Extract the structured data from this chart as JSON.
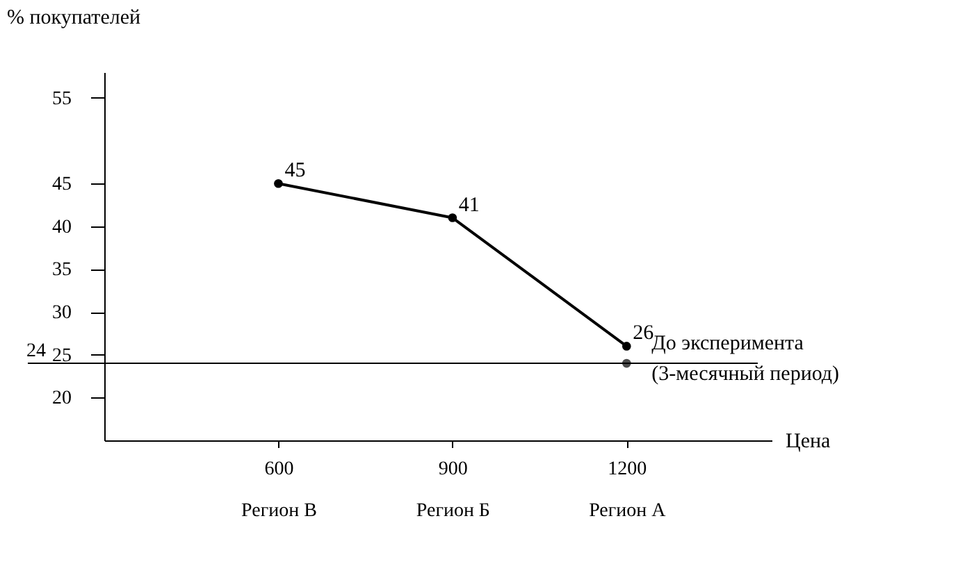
{
  "chart_data": {
    "type": "line",
    "xlabel": "Цена",
    "ylabel": "% покупателей",
    "x": [
      600,
      900,
      1200
    ],
    "series": [
      {
        "color": "#000000",
        "values": [
          45,
          41,
          26
        ],
        "value_labels": [
          "45",
          "41",
          "26"
        ],
        "marker": "circle"
      },
      {
        "type": "scatter",
        "color": "#000000",
        "x": [
          1200
        ],
        "values": [
          24
        ],
        "marker": "circle"
      }
    ],
    "xlim": [
      300,
      1450
    ],
    "ylim": [
      15,
      58
    ],
    "xticks": [
      {
        "value": 600,
        "label": "600\nРегион В"
      },
      {
        "value": 900,
        "label": "900\nРегион Б"
      },
      {
        "value": 1200,
        "label": "1200\nРегион А"
      }
    ],
    "yticks": [
      20,
      25,
      30,
      35,
      40,
      45,
      55
    ],
    "ref_lines": [
      {
        "axis": "y",
        "value": 24,
        "label": "24",
        "color": "#000000",
        "line_style": "solid"
      }
    ],
    "annotations": [
      {
        "text": "До эксперимента (3-месячный период)",
        "x": 1200,
        "y": 24
      }
    ]
  }
}
